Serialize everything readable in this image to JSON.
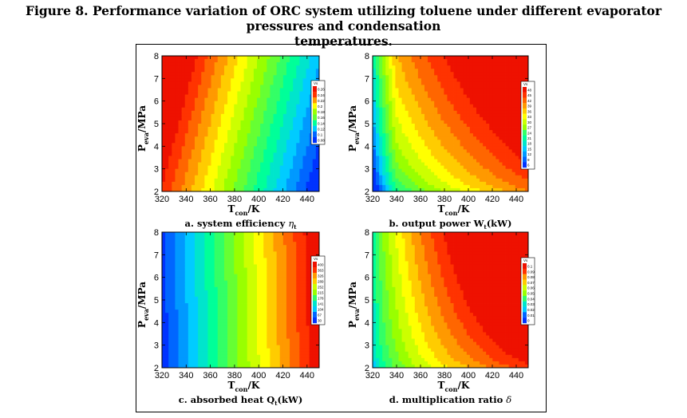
{
  "title": {
    "line1": "Figure 8. Performance variation of  ORC system utilizing toluene under different evaporator pressures and condensation",
    "line2": "temperatures."
  },
  "chart_data": [
    {
      "type": "heatmap",
      "id": "a",
      "caption_prefix": "a. system efficiency ",
      "caption_symbol": "η",
      "caption_sub": "t",
      "caption_suffix": "",
      "xlabel_main": "T",
      "xlabel_sub": "con",
      "xlabel_unit": "/K",
      "ylabel_main": "P",
      "ylabel_sub": "eva",
      "ylabel_unit": "/MPa",
      "xlim": [
        320,
        450
      ],
      "ylim": [
        2,
        8
      ],
      "xticks": [
        "320",
        "340",
        "360",
        "380",
        "400",
        "420",
        "440"
      ],
      "yticks": [
        "2",
        "3",
        "4",
        "5",
        "6",
        "7",
        "8"
      ],
      "legend_title": "Vs",
      "legend_levels": [
        "0.26",
        "0.24",
        "0.22",
        "0.2",
        "0.18",
        "0.16",
        "0.14",
        "0.12",
        "0.1",
        "0.08"
      ],
      "field": "efficiency"
    },
    {
      "type": "heatmap",
      "id": "b",
      "caption_prefix": "b. output power W",
      "caption_symbol": "",
      "caption_sub": "t",
      "caption_suffix": "(kW)",
      "xlabel_main": "T",
      "xlabel_sub": "con",
      "xlabel_unit": "/K",
      "ylabel_main": "P",
      "ylabel_sub": "eva",
      "ylabel_unit": "/MPa",
      "xlim": [
        320,
        450
      ],
      "ylim": [
        2,
        8
      ],
      "xticks": [
        "320",
        "340",
        "360",
        "380",
        "400",
        "420",
        "440"
      ],
      "yticks": [
        "2",
        "3",
        "4",
        "5",
        "6",
        "7",
        "8"
      ],
      "legend_title": "Vs",
      "legend_levels": [
        "48",
        "45",
        "42",
        "39",
        "36",
        "33",
        "30",
        "27",
        "24",
        "21",
        "18",
        "15",
        "12",
        "9",
        "6"
      ],
      "field": "power"
    },
    {
      "type": "heatmap",
      "id": "c",
      "caption_prefix": "c. absorbed heat Q",
      "caption_symbol": "",
      "caption_sub": "t",
      "caption_suffix": "(kW)",
      "xlabel_main": "T",
      "xlabel_sub": "con",
      "xlabel_unit": "/K",
      "ylabel_main": "P",
      "ylabel_sub": "eva",
      "ylabel_unit": "/MPa",
      "xlim": [
        320,
        450
      ],
      "ylim": [
        2,
        8
      ],
      "xticks": [
        "320",
        "340",
        "360",
        "380",
        "400",
        "420",
        "440"
      ],
      "yticks": [
        "2",
        "3",
        "4",
        "5",
        "6",
        "7",
        "8"
      ],
      "legend_title": "Vs",
      "legend_levels": [
        "400",
        "363",
        "326",
        "289",
        "252",
        "215",
        "178",
        "141",
        "104",
        "67",
        "30"
      ],
      "field": "heat"
    },
    {
      "type": "heatmap",
      "id": "d",
      "caption_prefix": "d. multiplication ratio ",
      "caption_symbol": "δ",
      "caption_sub": "",
      "caption_suffix": "",
      "xlabel_main": "T",
      "xlabel_sub": "con",
      "xlabel_unit": "/K",
      "ylabel_main": "P",
      "ylabel_sub": "eva",
      "ylabel_unit": "/MPa",
      "xlim": [
        320,
        450
      ],
      "ylim": [
        2,
        8
      ],
      "xticks": [
        "320",
        "340",
        "360",
        "380",
        "400",
        "420",
        "440"
      ],
      "yticks": [
        "2",
        "3",
        "4",
        "5",
        "6",
        "7",
        "8"
      ],
      "legend_title": "Vs",
      "legend_levels": [
        "0.1",
        "0.09",
        "0.08",
        "0.07",
        "0.06",
        "0.05",
        "0.04",
        "0.03",
        "0.02",
        "0.01",
        "0"
      ],
      "field": "ratio"
    }
  ],
  "colormap": [
    "#0033ff",
    "#0066ff",
    "#0099ff",
    "#00ccff",
    "#00e5cc",
    "#00ff99",
    "#33ff66",
    "#66ff33",
    "#99ff00",
    "#ccff00",
    "#ffff00",
    "#ffcc00",
    "#ff9900",
    "#ff6600",
    "#ff3300",
    "#ee1100"
  ]
}
